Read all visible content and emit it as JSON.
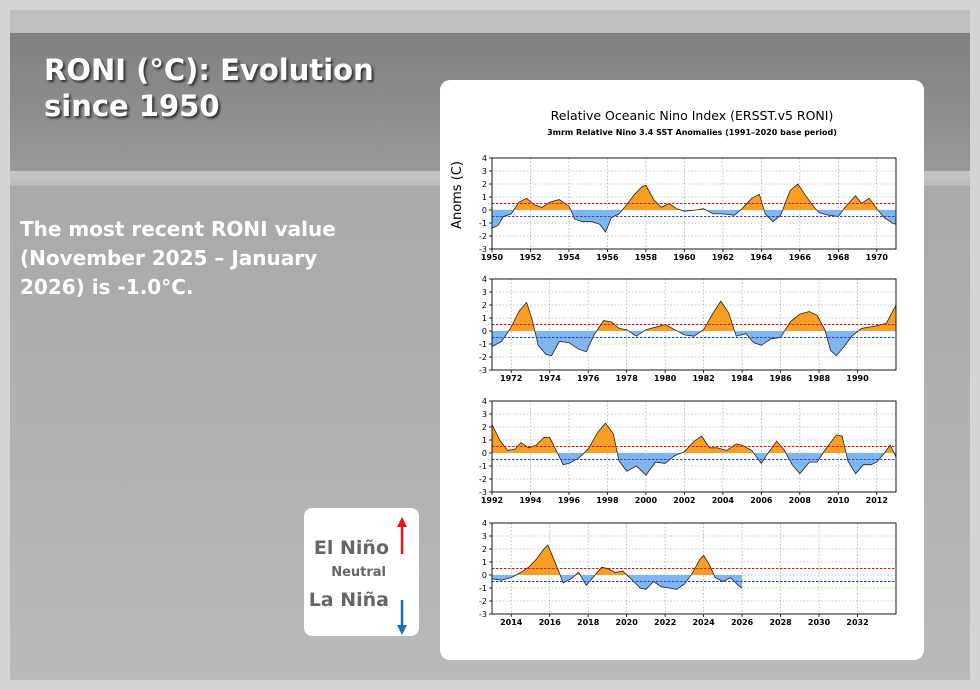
{
  "slide": {
    "title_line1": "RONI (°C): Evolution",
    "title_line2": "since 1950",
    "desc_line1": "The most recent RONI value",
    "desc_line2": "(November 2025 – January",
    "desc_line3": "2026) is -1.0°C."
  },
  "legend": {
    "el_nino": "El Niño",
    "neutral": "Neutral",
    "la_nina": "La Niña",
    "colors": {
      "el_nino_arrow": "#e8141c",
      "la_nina_arrow": "#1a6fc0"
    }
  },
  "chart_data": {
    "type": "area",
    "title": "Relative Oceanic Nino Index (ERSST.v5 RONI)",
    "subtitle": "3mrm Relative Nino 3.4 SST Anomalies (1991–2020 base period)",
    "ylabel": "Anoms (C)",
    "ylim": [
      -3,
      4
    ],
    "yticks": [
      4,
      3,
      2,
      1,
      0,
      -1,
      -2,
      -3
    ],
    "thresholds": {
      "el_nino": 0.5,
      "la_nina": -0.5
    },
    "colors": {
      "positive_fill": "#f5a023",
      "negative_fill": "#7fb6ee",
      "el_nino_line": "#e8141c",
      "la_nina_line": "#2b46d6"
    },
    "panels": [
      {
        "xlim": [
          1950,
          1971
        ],
        "xticks": [
          "1950",
          "1952",
          "1954",
          "1956",
          "1958",
          "1960",
          "1962",
          "1964",
          "1966",
          "1968",
          "1970"
        ],
        "points": [
          [
            1950,
            -1.4
          ],
          [
            1950.3,
            -1.2
          ],
          [
            1950.6,
            -0.5
          ],
          [
            1951,
            -0.3
          ],
          [
            1951.4,
            0.6
          ],
          [
            1951.8,
            0.9
          ],
          [
            1952.2,
            0.4
          ],
          [
            1952.6,
            0.2
          ],
          [
            1953,
            0.6
          ],
          [
            1953.5,
            0.8
          ],
          [
            1954,
            0.3
          ],
          [
            1954.3,
            -0.7
          ],
          [
            1954.7,
            -0.9
          ],
          [
            1955.2,
            -0.9
          ],
          [
            1955.6,
            -1.1
          ],
          [
            1955.9,
            -1.7
          ],
          [
            1956.2,
            -0.6
          ],
          [
            1956.6,
            -0.3
          ],
          [
            1957,
            0.4
          ],
          [
            1957.4,
            1.2
          ],
          [
            1957.8,
            1.8
          ],
          [
            1958,
            1.9
          ],
          [
            1958.4,
            0.8
          ],
          [
            1958.8,
            0.2
          ],
          [
            1959.2,
            0.5
          ],
          [
            1959.6,
            0.1
          ],
          [
            1960,
            -0.1
          ],
          [
            1960.6,
            0.0
          ],
          [
            1961,
            0.1
          ],
          [
            1961.5,
            -0.3
          ],
          [
            1962,
            -0.3
          ],
          [
            1962.6,
            -0.4
          ],
          [
            1963,
            0.1
          ],
          [
            1963.5,
            0.9
          ],
          [
            1963.9,
            1.2
          ],
          [
            1964.2,
            -0.3
          ],
          [
            1964.6,
            -0.9
          ],
          [
            1965,
            -0.4
          ],
          [
            1965.5,
            1.5
          ],
          [
            1965.9,
            2.0
          ],
          [
            1966.3,
            1.1
          ],
          [
            1966.7,
            0.3
          ],
          [
            1967,
            -0.2
          ],
          [
            1967.5,
            -0.4
          ],
          [
            1968,
            -0.5
          ],
          [
            1968.4,
            0.3
          ],
          [
            1968.9,
            1.1
          ],
          [
            1969.2,
            0.5
          ],
          [
            1969.6,
            0.9
          ],
          [
            1970,
            0.1
          ],
          [
            1970.4,
            -0.6
          ],
          [
            1970.8,
            -1.0
          ],
          [
            1971,
            -1.1
          ]
        ]
      },
      {
        "xlim": [
          1971,
          1992
        ],
        "xticks": [
          "1972",
          "1974",
          "1976",
          "1978",
          "1980",
          "1982",
          "1984",
          "1986",
          "1988",
          "1990"
        ],
        "points": [
          [
            1971,
            -1.2
          ],
          [
            1971.5,
            -0.8
          ],
          [
            1972,
            0.3
          ],
          [
            1972.4,
            1.5
          ],
          [
            1972.8,
            2.2
          ],
          [
            1973.1,
            0.8
          ],
          [
            1973.4,
            -1.1
          ],
          [
            1973.8,
            -1.8
          ],
          [
            1974.1,
            -1.9
          ],
          [
            1974.5,
            -0.8
          ],
          [
            1975,
            -0.9
          ],
          [
            1975.5,
            -1.4
          ],
          [
            1975.9,
            -1.6
          ],
          [
            1976.3,
            -0.3
          ],
          [
            1976.8,
            0.8
          ],
          [
            1977.2,
            0.7
          ],
          [
            1977.6,
            0.2
          ],
          [
            1978,
            0.1
          ],
          [
            1978.5,
            -0.4
          ],
          [
            1979,
            0.1
          ],
          [
            1979.5,
            0.3
          ],
          [
            1980,
            0.5
          ],
          [
            1980.5,
            0.1
          ],
          [
            1981,
            -0.3
          ],
          [
            1981.5,
            -0.4
          ],
          [
            1982,
            0.1
          ],
          [
            1982.5,
            1.4
          ],
          [
            1982.9,
            2.3
          ],
          [
            1983.3,
            1.4
          ],
          [
            1983.7,
            -0.4
          ],
          [
            1984.2,
            -0.2
          ],
          [
            1984.6,
            -0.9
          ],
          [
            1985,
            -1.1
          ],
          [
            1985.5,
            -0.6
          ],
          [
            1986,
            -0.5
          ],
          [
            1986.5,
            0.7
          ],
          [
            1987,
            1.3
          ],
          [
            1987.5,
            1.5
          ],
          [
            1987.9,
            1.2
          ],
          [
            1988.3,
            0.1
          ],
          [
            1988.6,
            -1.5
          ],
          [
            1988.9,
            -1.9
          ],
          [
            1989.3,
            -1.2
          ],
          [
            1989.7,
            -0.4
          ],
          [
            1990.2,
            0.2
          ],
          [
            1990.6,
            0.3
          ],
          [
            1991,
            0.4
          ],
          [
            1991.5,
            0.6
          ],
          [
            1992,
            2.0
          ]
        ]
      },
      {
        "xlim": [
          1992,
          2013
        ],
        "xticks": [
          "1992",
          "1994",
          "1996",
          "1998",
          "2000",
          "2002",
          "2004",
          "2006",
          "2008",
          "2010",
          "2012"
        ],
        "points": [
          [
            1992,
            2.2
          ],
          [
            1992.4,
            1.0
          ],
          [
            1992.8,
            0.2
          ],
          [
            1993.2,
            0.3
          ],
          [
            1993.5,
            0.8
          ],
          [
            1993.9,
            0.4
          ],
          [
            1994.3,
            0.6
          ],
          [
            1994.7,
            1.2
          ],
          [
            1995,
            1.2
          ],
          [
            1995.3,
            0.3
          ],
          [
            1995.7,
            -0.9
          ],
          [
            1996,
            -0.8
          ],
          [
            1996.5,
            -0.4
          ],
          [
            1997,
            0.3
          ],
          [
            1997.5,
            1.6
          ],
          [
            1997.9,
            2.3
          ],
          [
            1998.3,
            1.5
          ],
          [
            1998.6,
            -0.6
          ],
          [
            1999,
            -1.4
          ],
          [
            1999.5,
            -1.0
          ],
          [
            2000,
            -1.7
          ],
          [
            2000.5,
            -0.7
          ],
          [
            2001,
            -0.8
          ],
          [
            2001.5,
            -0.2
          ],
          [
            2002,
            0.1
          ],
          [
            2002.5,
            0.9
          ],
          [
            2002.9,
            1.3
          ],
          [
            2003.3,
            0.4
          ],
          [
            2003.7,
            0.4
          ],
          [
            2004.2,
            0.2
          ],
          [
            2004.7,
            0.7
          ],
          [
            2005,
            0.6
          ],
          [
            2005.5,
            0.2
          ],
          [
            2006,
            -0.8
          ],
          [
            2006.4,
            0.1
          ],
          [
            2006.8,
            0.9
          ],
          [
            2007.2,
            0.2
          ],
          [
            2007.6,
            -0.9
          ],
          [
            2008,
            -1.6
          ],
          [
            2008.5,
            -0.7
          ],
          [
            2008.9,
            -0.7
          ],
          [
            2009.3,
            0.2
          ],
          [
            2009.9,
            1.4
          ],
          [
            2010.2,
            1.3
          ],
          [
            2010.5,
            -0.6
          ],
          [
            2010.9,
            -1.6
          ],
          [
            2011.3,
            -0.9
          ],
          [
            2011.7,
            -0.9
          ],
          [
            2012,
            -0.7
          ],
          [
            2012.4,
            0.0
          ],
          [
            2012.7,
            0.6
          ],
          [
            2013,
            -0.3
          ]
        ]
      },
      {
        "xlim": [
          2013,
          2034
        ],
        "xticks": [
          "2014",
          "2016",
          "2018",
          "2020",
          "2022",
          "2024",
          "2026",
          "2028",
          "2030",
          "2032"
        ],
        "points": [
          [
            2013,
            -0.3
          ],
          [
            2013.5,
            -0.4
          ],
          [
            2014,
            -0.2
          ],
          [
            2014.5,
            0.2
          ],
          [
            2014.9,
            0.6
          ],
          [
            2015.3,
            1.2
          ],
          [
            2015.7,
            2.0
          ],
          [
            2015.9,
            2.3
          ],
          [
            2016.3,
            0.9
          ],
          [
            2016.7,
            -0.6
          ],
          [
            2017.1,
            -0.3
          ],
          [
            2017.5,
            0.2
          ],
          [
            2017.9,
            -0.8
          ],
          [
            2018.3,
            -0.1
          ],
          [
            2018.7,
            0.6
          ],
          [
            2019,
            0.5
          ],
          [
            2019.4,
            0.2
          ],
          [
            2019.8,
            0.3
          ],
          [
            2020.3,
            -0.4
          ],
          [
            2020.7,
            -1.0
          ],
          [
            2021,
            -1.1
          ],
          [
            2021.4,
            -0.5
          ],
          [
            2021.8,
            -0.9
          ],
          [
            2022.2,
            -1.0
          ],
          [
            2022.6,
            -1.1
          ],
          [
            2023,
            -0.7
          ],
          [
            2023.4,
            0.1
          ],
          [
            2023.8,
            1.2
          ],
          [
            2024,
            1.5
          ],
          [
            2024.3,
            0.8
          ],
          [
            2024.6,
            -0.2
          ],
          [
            2025,
            -0.5
          ],
          [
            2025.4,
            -0.2
          ],
          [
            2025.8,
            -0.8
          ],
          [
            2026,
            -1.0
          ]
        ]
      }
    ]
  }
}
